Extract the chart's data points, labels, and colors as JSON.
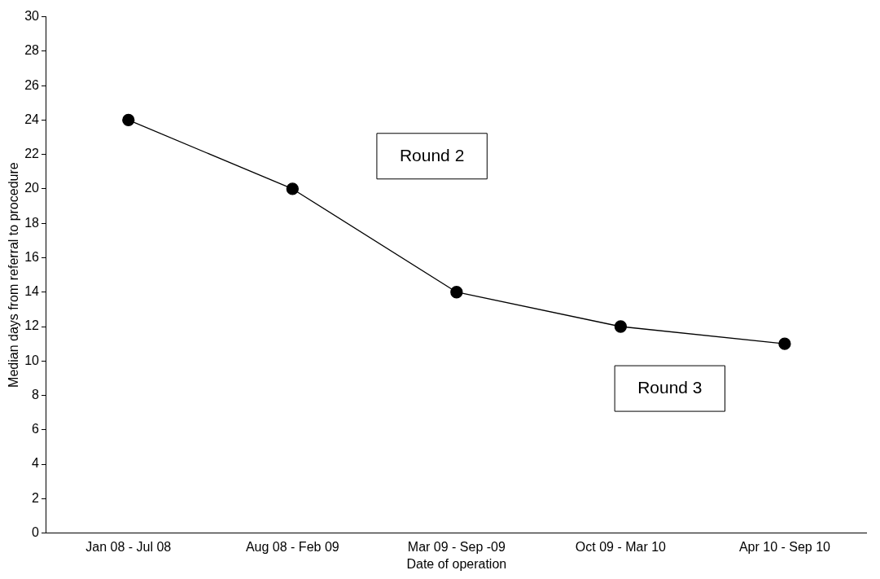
{
  "chart_data": {
    "type": "line",
    "xlabel": "Date of operation",
    "ylabel": "Median days from referral to procedure",
    "categories": [
      "Jan 08 - Jul 08",
      "Aug 08 - Feb 09",
      "Mar 09 - Sep -09",
      "Oct 09 - Mar 10",
      "Apr 10 - Sep 10"
    ],
    "series": [
      {
        "color": "#000000",
        "values": [
          24,
          20,
          14,
          12,
          11
        ]
      }
    ],
    "ylim": [
      0,
      30
    ],
    "yticks": [
      0,
      2,
      4,
      6,
      8,
      10,
      12,
      14,
      16,
      18,
      20,
      22,
      24,
      26,
      28,
      30
    ],
    "marker": "circle",
    "line_style": "solid",
    "annotations": [
      "Round 2",
      "Round 3"
    ]
  }
}
